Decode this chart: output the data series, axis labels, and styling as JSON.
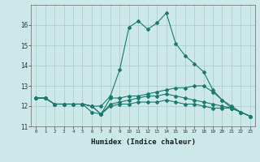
{
  "xlabel": "Humidex (Indice chaleur)",
  "ylabel": "",
  "bg_color": "#cce8e8",
  "line_color": "#1a7a6e",
  "grid_color": "#aacfcf",
  "xlim": [
    -0.5,
    23.5
  ],
  "ylim": [
    11,
    17
  ],
  "yticks": [
    11,
    12,
    13,
    14,
    15,
    16
  ],
  "xticks": [
    0,
    1,
    2,
    3,
    4,
    5,
    6,
    7,
    8,
    9,
    10,
    11,
    12,
    13,
    14,
    15,
    16,
    17,
    18,
    19,
    20,
    21,
    22,
    23
  ],
  "line1_y": [
    12.4,
    12.4,
    12.1,
    12.1,
    12.1,
    12.1,
    12.0,
    12.0,
    12.5,
    13.8,
    15.9,
    16.2,
    15.8,
    16.1,
    16.6,
    15.1,
    14.5,
    14.1,
    13.7,
    12.8,
    12.3,
    11.9,
    11.7,
    11.5
  ],
  "line2_y": [
    12.4,
    12.4,
    12.1,
    12.1,
    12.1,
    12.1,
    11.7,
    11.6,
    12.4,
    12.4,
    12.5,
    12.5,
    12.6,
    12.7,
    12.8,
    12.9,
    12.9,
    13.0,
    13.0,
    12.7,
    12.3,
    12.0,
    11.7,
    11.5
  ],
  "line3_y": [
    12.4,
    12.4,
    12.1,
    12.1,
    12.1,
    12.1,
    12.0,
    11.6,
    12.1,
    12.2,
    12.3,
    12.4,
    12.5,
    12.5,
    12.6,
    12.5,
    12.4,
    12.3,
    12.2,
    12.1,
    12.0,
    11.9,
    11.7,
    11.5
  ],
  "line4_y": [
    12.4,
    12.4,
    12.1,
    12.1,
    12.1,
    12.1,
    12.0,
    11.6,
    12.0,
    12.1,
    12.1,
    12.2,
    12.2,
    12.2,
    12.3,
    12.2,
    12.1,
    12.1,
    12.0,
    11.9,
    11.9,
    11.9,
    11.7,
    11.5
  ],
  "marker": "D",
  "markersize": 2.0,
  "linewidth": 0.8
}
